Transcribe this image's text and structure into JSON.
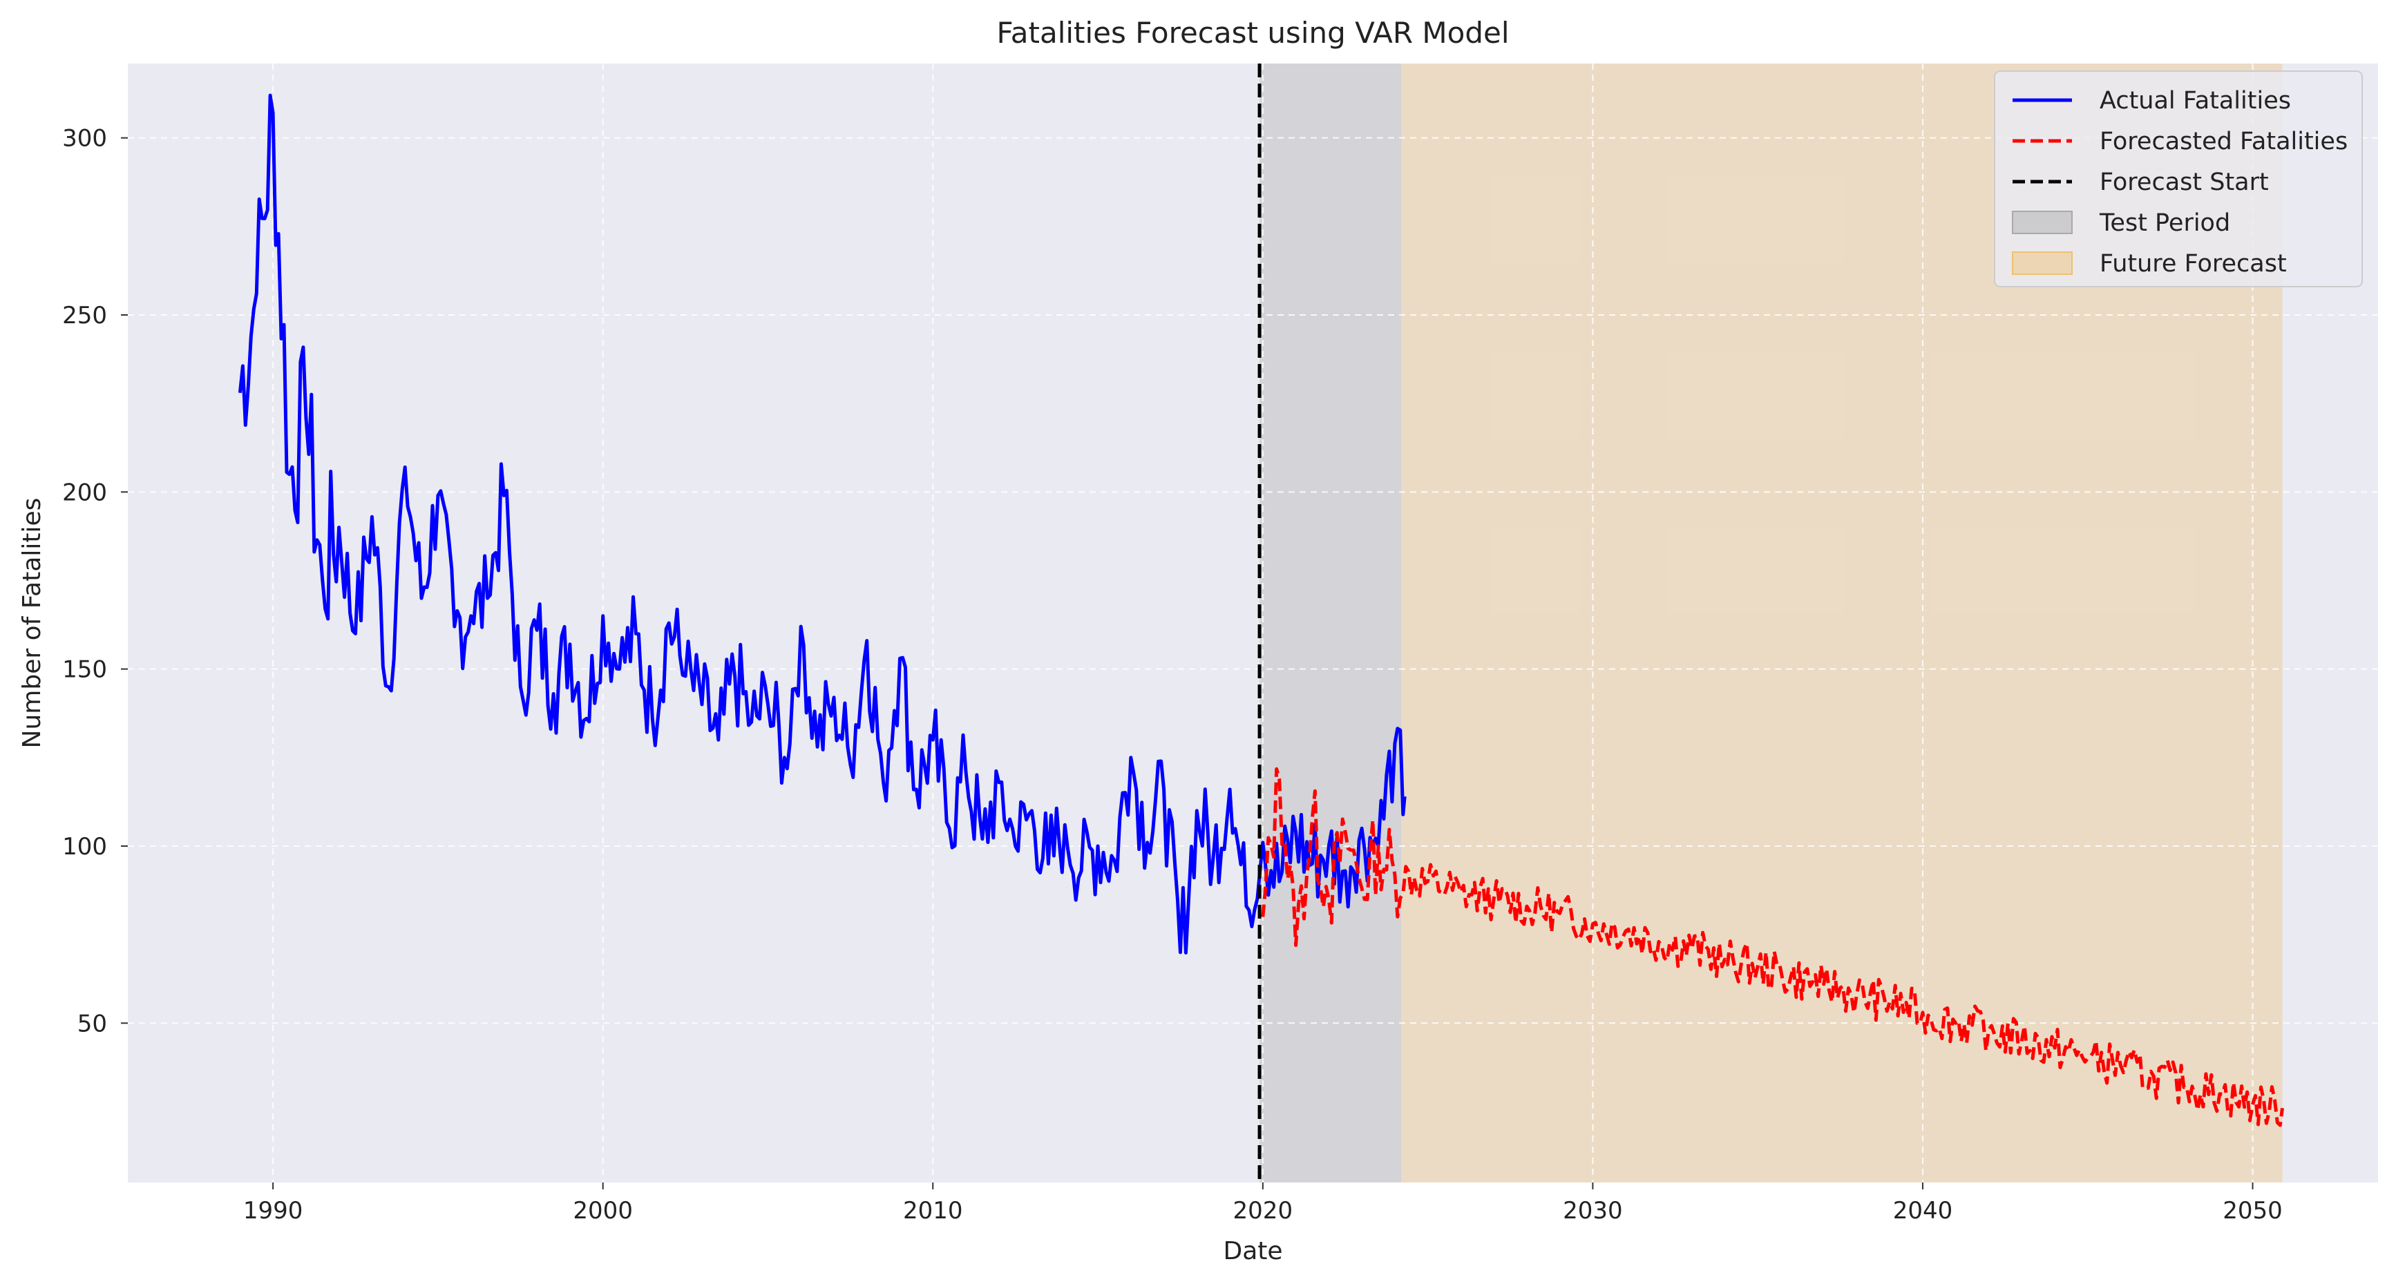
{
  "chart_data": {
    "type": "line",
    "title": "Fatalities  Forecast using VAR Model",
    "xlabel": "Date",
    "ylabel": "Number of Fatalities",
    "xlim": [
      1985.6,
      2053.8
    ],
    "ylim": [
      5,
      321
    ],
    "x_ticks": [
      1990,
      2000,
      2010,
      2020,
      2030,
      2040,
      2050
    ],
    "y_ticks": [
      50,
      100,
      150,
      200,
      250,
      300
    ],
    "grid": true,
    "legend_position": "top-right",
    "forecast_start": 2019.9,
    "regions": [
      {
        "name": "Test Period",
        "start": 2019.9,
        "end": 2024.2,
        "color": "#a9a9a9"
      },
      {
        "name": "Future Forecast",
        "start": 2024.2,
        "end": 2050.9,
        "color": "#f0c070"
      }
    ],
    "series": [
      {
        "name": "Actual Fatalities",
        "color": "#0000ff",
        "style": "solid",
        "x": [
          1989.0,
          1989.5,
          1990.0,
          1990.5,
          1991.0,
          1991.5,
          1992.0,
          1992.5,
          1993.0,
          1993.5,
          1994.0,
          1994.5,
          1995.0,
          1995.5,
          1996.0,
          1996.5,
          1997.0,
          1997.5,
          1998.0,
          1998.5,
          1999.0,
          1999.5,
          2000.0,
          2000.5,
          2001.0,
          2001.5,
          2002.0,
          2002.5,
          2003.0,
          2003.5,
          2004.0,
          2004.5,
          2005.0,
          2005.5,
          2006.0,
          2006.5,
          2007.0,
          2007.5,
          2008.0,
          2008.5,
          2009.0,
          2009.5,
          2010.0,
          2010.5,
          2011.0,
          2011.5,
          2012.0,
          2012.5,
          2013.0,
          2013.5,
          2014.0,
          2014.5,
          2015.0,
          2015.5,
          2016.0,
          2016.5,
          2017.0,
          2017.5,
          2018.0,
          2018.5,
          2019.0,
          2019.5,
          2020.0,
          2020.5,
          2021.0,
          2021.5,
          2022.0,
          2022.5,
          2023.0,
          2023.5,
          2024.0,
          2024.3
        ],
        "y": [
          228,
          256,
          307,
          205,
          221,
          175,
          190,
          160,
          193,
          145,
          207,
          170,
          199,
          162,
          165,
          170,
          199,
          145,
          161,
          143,
          157,
          136,
          165,
          150,
          160,
          136,
          163,
          148,
          140,
          130,
          148,
          135,
          140,
          125,
          162,
          128,
          142,
          123,
          158,
          118,
          153,
          116,
          130,
          105,
          121,
          102,
          118,
          100,
          110,
          95,
          106,
          93,
          100,
          96,
          125,
          101,
          116,
          70,
          110,
          97,
          116,
          83,
          101,
          90,
          104,
          95,
          100,
          93,
          105,
          100,
          129,
          114
        ]
      },
      {
        "name": "Forecasted Fatalities",
        "color": "#ff0000",
        "style": "dashed",
        "x": [
          2020.0,
          2020.5,
          2021.0,
          2021.5,
          2022.0,
          2022.5,
          2023.0,
          2023.5,
          2024.0,
          2025.0,
          2026.0,
          2027.0,
          2028.0,
          2029.0,
          2030.0,
          2031.0,
          2032.0,
          2033.0,
          2034.0,
          2035.0,
          2036.0,
          2037.0,
          2038.0,
          2039.0,
          2040.0,
          2041.0,
          2042.0,
          2043.0,
          2044.0,
          2045.0,
          2046.0,
          2047.0,
          2048.0,
          2049.0,
          2050.0,
          2050.9
        ],
        "y": [
          80,
          119,
          72,
          108,
          85,
          104,
          88,
          100,
          92,
          90,
          87,
          85,
          83,
          81,
          78,
          76,
          73,
          71,
          68,
          66,
          63,
          61,
          58,
          56,
          53,
          50,
          48,
          45,
          43,
          40,
          38,
          35,
          32,
          30,
          27,
          26
        ]
      }
    ],
    "legend": [
      {
        "label": "Actual Fatalities",
        "kind": "line",
        "color": "#0000ff"
      },
      {
        "label": "Forecasted Fatalities",
        "kind": "dashed",
        "color": "#ff0000"
      },
      {
        "label": "Forecast Start",
        "kind": "dashed",
        "color": "#000000"
      },
      {
        "label": "Test Period",
        "kind": "patch",
        "color": "#a9a9a9"
      },
      {
        "label": "Future Forecast",
        "kind": "patch",
        "color": "#f0c070"
      }
    ]
  }
}
